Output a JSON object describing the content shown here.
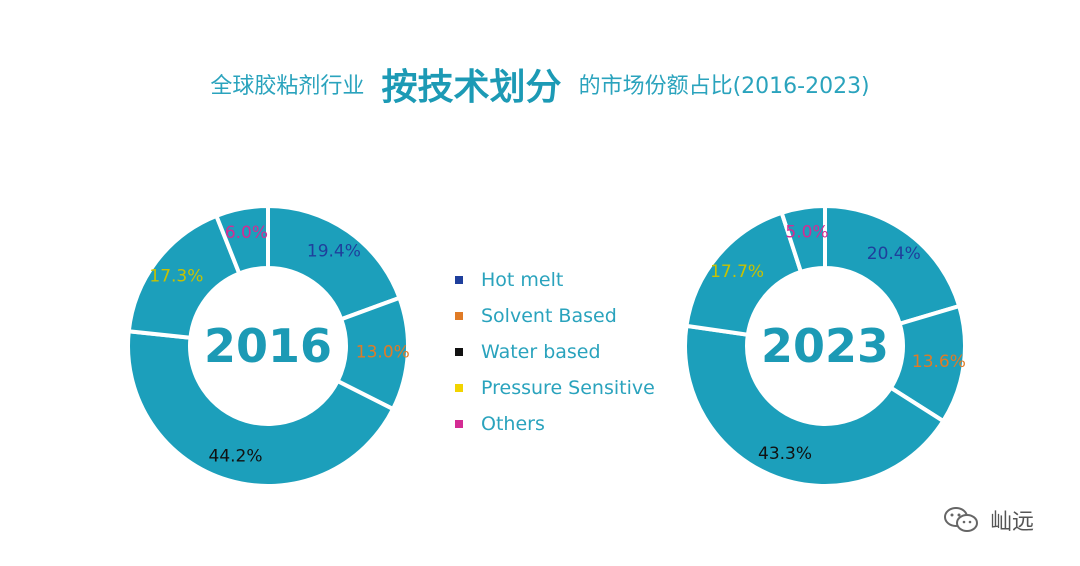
{
  "title": {
    "prefix": "全球胶粘剂行业",
    "emphasis": "按技术划分",
    "suffix": "的市场份额占比(2016-2023)"
  },
  "colors": {
    "donut_fill": "#1c9fbb",
    "center_text": "#1c9ab5",
    "legend_text": "#2aa3bd"
  },
  "legend": [
    {
      "label": "Hot melt",
      "color": "#1f3f9c"
    },
    {
      "label": "Solvent Based",
      "color": "#e07b26"
    },
    {
      "label": "Water based",
      "color": "#111111"
    },
    {
      "label": "Pressure Sensitive",
      "color": "#f2d400"
    },
    {
      "label": "Others",
      "color": "#d42b93"
    }
  ],
  "chart_data": [
    {
      "type": "pie",
      "center_label": "2016",
      "slices": [
        {
          "category": "Hot melt",
          "value": 19.4,
          "label": "19.4%",
          "label_color": "#1f3f9c"
        },
        {
          "category": "Solvent Based",
          "value": 13.0,
          "label": "13.0%",
          "label_color": "#e07b26"
        },
        {
          "category": "Water based",
          "value": 44.2,
          "label": "44.2%",
          "label_color": "#111111"
        },
        {
          "category": "Pressure Sensitive",
          "value": 17.3,
          "label": "17.3%",
          "label_color": "#c9c200"
        },
        {
          "category": "Others",
          "value": 6.0,
          "label": "6.0%",
          "label_color": "#d42b93"
        }
      ]
    },
    {
      "type": "pie",
      "center_label": "2023",
      "slices": [
        {
          "category": "Hot melt",
          "value": 20.4,
          "label": "20.4%",
          "label_color": "#1f3f9c"
        },
        {
          "category": "Solvent Based",
          "value": 13.6,
          "label": "13.6%",
          "label_color": "#e07b26"
        },
        {
          "category": "Water based",
          "value": 43.3,
          "label": "43.3%",
          "label_color": "#111111"
        },
        {
          "category": "Pressure Sensitive",
          "value": 17.7,
          "label": "17.7%",
          "label_color": "#c9c200"
        },
        {
          "category": "Others",
          "value": 5.0,
          "label": "5.0%",
          "label_color": "#d42b93"
        }
      ]
    }
  ],
  "watermark": {
    "icon": "wechat-icon",
    "text": "屾远"
  }
}
